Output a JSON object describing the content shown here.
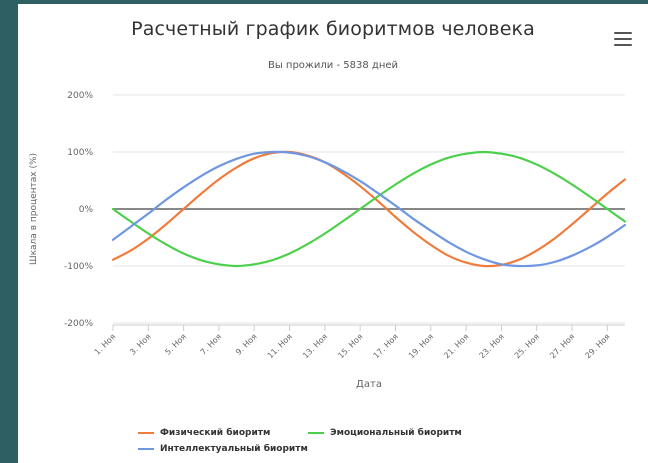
{
  "title": "Расчетный график биоритмов человека",
  "subtitle": "Вы прожили - 5838 дней",
  "menu_icon": "hamburger-menu-icon",
  "chart_data": {
    "type": "line",
    "title": "Расчетный график биоритмов человека",
    "subtitle": "Вы прожили - 5838 дней",
    "xlabel": "Дата",
    "ylabel": "Шкала в процентах (%)",
    "ylim": [
      -200,
      200
    ],
    "yticks": [
      200,
      100,
      0,
      -100,
      -200
    ],
    "ytick_labels": [
      "200%",
      "100%",
      "0%",
      "-100%",
      "-200%"
    ],
    "xlim": [
      1,
      30
    ],
    "xticks": [
      1,
      3,
      5,
      7,
      9,
      11,
      13,
      15,
      17,
      19,
      21,
      23,
      25,
      27,
      29
    ],
    "xtick_labels": [
      "1. Ноя",
      "3. Ноя",
      "5. Ноя",
      "7. Ноя",
      "9. Ноя",
      "11. Ноя",
      "13. Ноя",
      "15. Ноя",
      "17. Ноя",
      "19. Ноя",
      "21. Ноя",
      "23. Ноя",
      "25. Ноя",
      "27. Ноя",
      "29. Ноя"
    ],
    "grid": true,
    "legend_position": "bottom",
    "x": [
      1,
      2,
      3,
      4,
      5,
      6,
      7,
      8,
      9,
      10,
      11,
      12,
      13,
      14,
      15,
      16,
      17,
      18,
      19,
      20,
      21,
      22,
      23,
      24,
      25,
      26,
      27,
      28,
      29,
      30
    ],
    "series": [
      {
        "name": "Физический биоритм",
        "color": "#f07c3c",
        "values": [
          -89,
          -73,
          -52,
          -27,
          0,
          27,
          52,
          73,
          89,
          98,
          100,
          94,
          82,
          63,
          40,
          14,
          -14,
          -40,
          -63,
          -82,
          -94,
          -100,
          -98,
          -89,
          -73,
          -52,
          -27,
          0,
          27,
          52
        ]
      },
      {
        "name": "Эмоциональный биоритм",
        "color": "#4cd04c",
        "values": [
          0,
          -22,
          -43,
          -62,
          -78,
          -90,
          -97,
          -100,
          -97,
          -90,
          -78,
          -62,
          -43,
          -22,
          0,
          22,
          43,
          62,
          78,
          90,
          97,
          100,
          97,
          90,
          78,
          62,
          43,
          22,
          0,
          -22
        ]
      },
      {
        "name": "Интеллектуальный биоритм",
        "color": "#6f96e0",
        "values": [
          -54,
          -31,
          -8,
          16,
          38,
          58,
          75,
          88,
          97,
          100,
          99,
          93,
          82,
          67,
          49,
          28,
          6,
          -17,
          -38,
          -58,
          -75,
          -88,
          -97,
          -100,
          -99,
          -93,
          -82,
          -67,
          -49,
          -28
        ]
      }
    ]
  }
}
